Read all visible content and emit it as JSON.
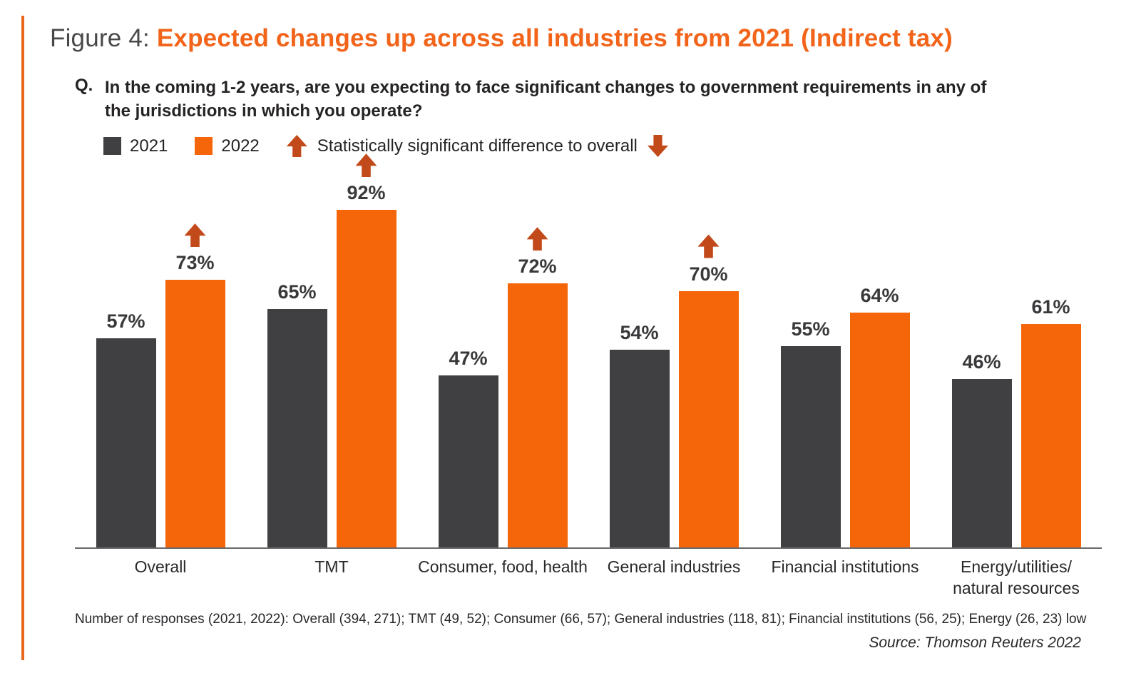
{
  "header": {
    "figure_label": "Figure 4:",
    "title": "Expected changes up across all industries from 2021 (Indirect tax)"
  },
  "question": {
    "prefix": "Q.",
    "lines": [
      "In the coming 1-2 years, are you expecting to face significant changes to government requirements in any of",
      "the jurisdictions in which you operate?"
    ]
  },
  "legend": {
    "series": [
      {
        "label": "2021",
        "color": "#404042"
      },
      {
        "label": "2022",
        "color": "#F5660A"
      }
    ],
    "significance_label": "Statistically significant difference to overall",
    "up_arrow_icon": "up-arrow",
    "down_arrow_icon": "down-arrow",
    "arrow_color": "#C2491A"
  },
  "chart_data": {
    "type": "bar",
    "categories": [
      "Overall",
      "TMT",
      "Consumer, food, health",
      "General industries",
      "Financial institutions",
      "Energy/utilities/ natural resources"
    ],
    "category_label_lines": [
      [
        "Overall"
      ],
      [
        "TMT"
      ],
      [
        "Consumer, food, health"
      ],
      [
        "General industries"
      ],
      [
        "Financial institutions"
      ],
      [
        "Energy/utilities/",
        "natural resources"
      ]
    ],
    "series": [
      {
        "name": "2021",
        "color": "#404042",
        "values": [
          57,
          65,
          47,
          54,
          55,
          46
        ]
      },
      {
        "name": "2022",
        "color": "#F5660A",
        "values": [
          73,
          92,
          72,
          70,
          64,
          61
        ]
      }
    ],
    "significant_vs_overall_2022": [
      true,
      true,
      true,
      true,
      false,
      false
    ],
    "value_suffix": "%",
    "ylim": [
      0,
      100
    ],
    "grid": false,
    "legend_position": "top-left",
    "title": "Expected changes up across all industries from 2021 (Indirect tax)"
  },
  "footnote": "Number of responses (2021, 2022): Overall (394, 271); TMT (49, 52); Consumer (66, 57); General industries (118, 81); Financial institutions (56, 25); Energy (26, 23) low",
  "source": "Source: Thomson Reuters 2022",
  "colors": {
    "bar_2021": "#404042",
    "bar_2022": "#F5660A",
    "significance_arrow": "#C2491A",
    "title_orange": "#F2641A",
    "accent_line": "#E8671C",
    "axis": "#69696B"
  }
}
